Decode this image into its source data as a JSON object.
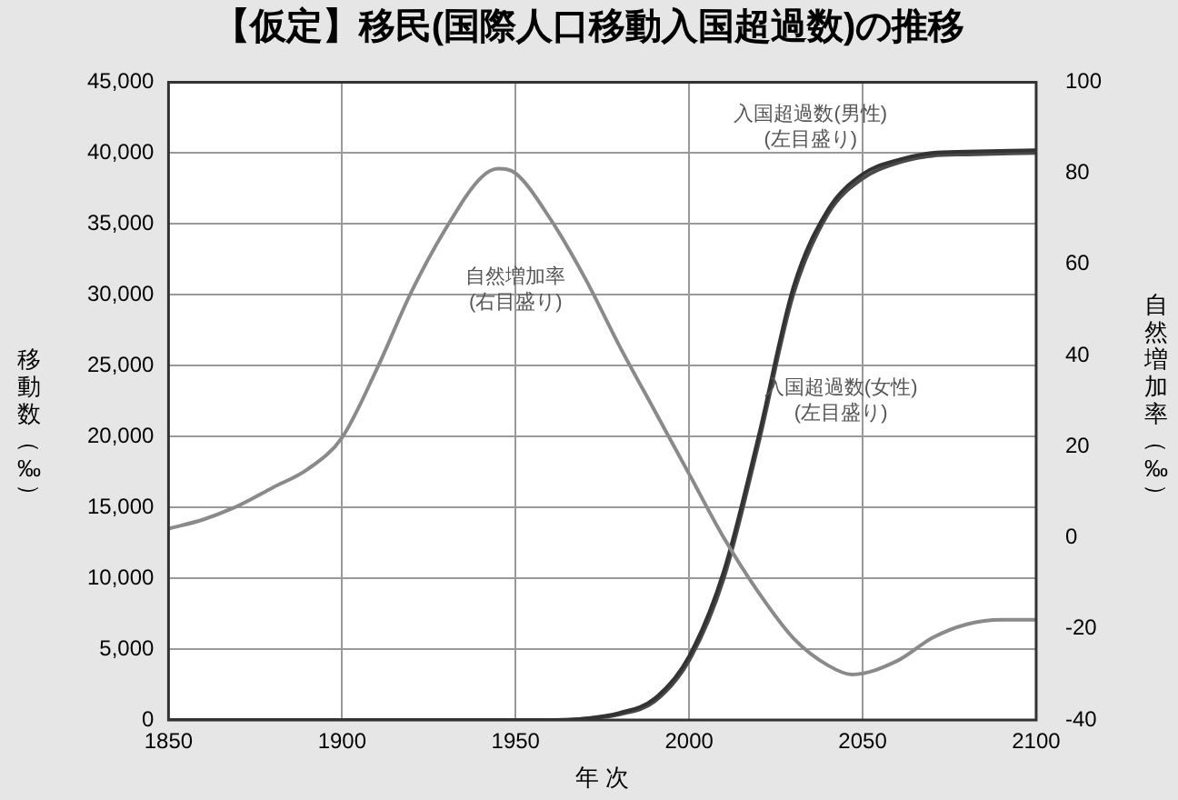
{
  "chart_data": {
    "type": "line",
    "title": "【仮定】移民(国際人口移動入国超過数)の推移",
    "xlabel": "年 次",
    "ylabel": "移動数（‰）",
    "y2label": "自然増加率（‰）",
    "series": [
      {
        "name": "自然増加率",
        "axis": "y2",
        "color": "#8a8a8a",
        "x": [
          1850,
          1860,
          1870,
          1880,
          1890,
          1900,
          1910,
          1920,
          1930,
          1940,
          1945,
          1950,
          1960,
          1970,
          1980,
          1990,
          2000,
          2010,
          2020,
          2030,
          2040,
          2047,
          2060,
          2070,
          2080,
          2090,
          2100
        ],
        "values": [
          2,
          4,
          7,
          11,
          15,
          22,
          37,
          54,
          68,
          79,
          81,
          80,
          70,
          57,
          42,
          28,
          14,
          0,
          -12,
          -22,
          -28,
          -30,
          -27,
          -22,
          -19,
          -18,
          -18
        ]
      },
      {
        "name": "入国超過数(男性)",
        "color": "#333333",
        "x": [
          1850,
          1900,
          1950,
          1960,
          1970,
          1980,
          1990,
          2000,
          2010,
          2020,
          2030,
          2040,
          2050,
          2060,
          2070,
          2080,
          2100
        ],
        "values": [
          0,
          0,
          0,
          0,
          100,
          500,
          1500,
          4500,
          10500,
          20000,
          30500,
          36000,
          38500,
          39500,
          40000,
          40100,
          40200
        ]
      },
      {
        "name": "入国超過数(女性)",
        "color": "#4a4a4a",
        "x": [
          1850,
          1900,
          1950,
          1960,
          1970,
          1980,
          1990,
          2000,
          2010,
          2020,
          2030,
          2040,
          2050,
          2060,
          2070,
          2080,
          2100
        ],
        "values": [
          0,
          0,
          0,
          0,
          100,
          400,
          1300,
          4200,
          10000,
          19500,
          30000,
          35700,
          38200,
          39300,
          39800,
          39900,
          40000
        ]
      }
    ],
    "xlim": [
      1850,
      2100
    ],
    "xticks": [
      1850,
      1900,
      1950,
      2000,
      2050,
      2100
    ],
    "ylim": [
      0,
      45000
    ],
    "yticks": [
      0,
      {
        "value": 5000,
        "label": "5,000"
      },
      {
        "value": 10000,
        "label": "10,000"
      },
      {
        "value": 15000,
        "label": "15,000"
      },
      {
        "value": 20000,
        "label": "20,000"
      },
      {
        "value": 25000,
        "label": "25,000"
      },
      {
        "value": 30000,
        "label": "30,000"
      },
      {
        "value": 35000,
        "label": "35,000"
      },
      {
        "value": 40000,
        "label": "40,000"
      },
      {
        "value": 45000,
        "label": "45,000"
      }
    ],
    "y2lim": [
      -40,
      100
    ],
    "y2ticks": [
      -40,
      -20,
      0,
      20,
      40,
      60,
      80,
      100
    ],
    "annotations": [
      "(右目盛り)",
      "(左目盛り)",
      "(左目盛り)"
    ],
    "grid": true,
    "legend": false,
    "marker": "none",
    "line_style": "solid"
  }
}
